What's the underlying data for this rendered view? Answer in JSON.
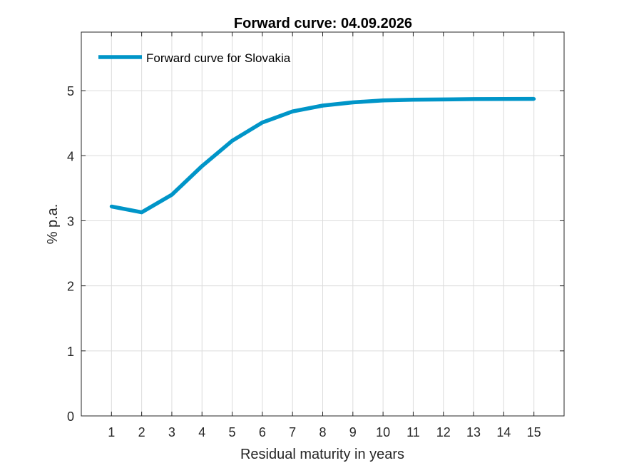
{
  "chart_data": {
    "type": "line",
    "title": "Forward curve: 04.09.2026",
    "xlabel": "Residual maturity in years",
    "ylabel": "% p.a.",
    "xlim": [
      0,
      16
    ],
    "ylim": [
      0,
      5.9
    ],
    "xticks": [
      1,
      2,
      3,
      4,
      5,
      6,
      7,
      8,
      9,
      10,
      11,
      12,
      13,
      14,
      15
    ],
    "yticks": [
      0,
      1,
      2,
      3,
      4,
      5
    ],
    "grid": true,
    "legend_position": "top-left",
    "series": [
      {
        "name": "Forward curve for Slovakia",
        "color": "#0095c8",
        "x": [
          1,
          2,
          3,
          4,
          5,
          6,
          7,
          8,
          9,
          10,
          11,
          12,
          13,
          14,
          15
        ],
        "y": [
          3.22,
          3.13,
          3.4,
          3.84,
          4.23,
          4.51,
          4.68,
          4.77,
          4.82,
          4.85,
          4.86,
          4.865,
          4.87,
          4.872,
          4.873
        ]
      }
    ]
  }
}
